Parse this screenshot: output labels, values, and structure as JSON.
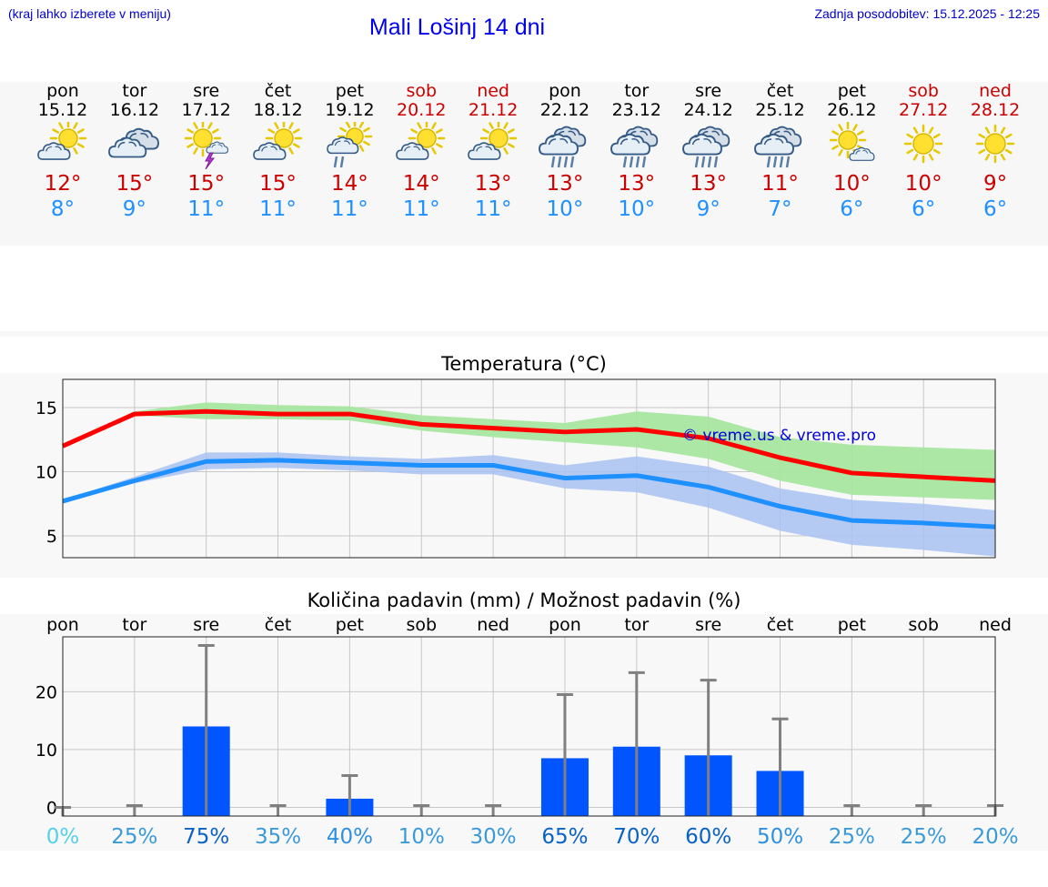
{
  "header": {
    "hint": "(kraj lahko izberete v meniju)",
    "title": "Mali Lošinj 14 dni",
    "updated": "Zadnja posodobitev: 15.12.2025 - 12:25"
  },
  "days": [
    {
      "name": "pon",
      "date": "15.12",
      "max": "12°",
      "min": "8°",
      "icon": "partly-cloudy-sun-icon",
      "weekend": false
    },
    {
      "name": "tor",
      "date": "16.12",
      "max": "15°",
      "min": "9°",
      "icon": "cloudy-icon",
      "weekend": false
    },
    {
      "name": "sre",
      "date": "17.12",
      "max": "15°",
      "min": "11°",
      "icon": "sun-thunderstorm-icon",
      "weekend": false
    },
    {
      "name": "čet",
      "date": "18.12",
      "max": "15°",
      "min": "11°",
      "icon": "partly-cloudy-sun-icon",
      "weekend": false
    },
    {
      "name": "pet",
      "date": "19.12",
      "max": "14°",
      "min": "11°",
      "icon": "sun-cloud-rain-icon",
      "weekend": false
    },
    {
      "name": "sob",
      "date": "20.12",
      "max": "14°",
      "min": "11°",
      "icon": "partly-cloudy-sun-icon",
      "weekend": true
    },
    {
      "name": "ned",
      "date": "21.12",
      "max": "13°",
      "min": "11°",
      "icon": "partly-cloudy-sun-icon",
      "weekend": true
    },
    {
      "name": "pon",
      "date": "22.12",
      "max": "13°",
      "min": "10°",
      "icon": "rain-cloud-icon",
      "weekend": false
    },
    {
      "name": "tor",
      "date": "23.12",
      "max": "13°",
      "min": "10°",
      "icon": "rain-cloud-icon",
      "weekend": false
    },
    {
      "name": "sre",
      "date": "24.12",
      "max": "13°",
      "min": "9°",
      "icon": "rain-cloud-icon",
      "weekend": false
    },
    {
      "name": "čet",
      "date": "25.12",
      "max": "11°",
      "min": "7°",
      "icon": "rain-cloud-icon",
      "weekend": false
    },
    {
      "name": "pet",
      "date": "26.12",
      "max": "10°",
      "min": "6°",
      "icon": "sun-small-cloud-icon",
      "weekend": false
    },
    {
      "name": "sob",
      "date": "27.12",
      "max": "10°",
      "min": "6°",
      "icon": "sun-icon",
      "weekend": true
    },
    {
      "name": "ned",
      "date": "28.12",
      "max": "9°",
      "min": "6°",
      "icon": "sun-icon",
      "weekend": true
    }
  ],
  "colors": {
    "max": "#ff0000",
    "min": "#1e90ff",
    "max_band": "#a8e6a0",
    "min_band": "#a9c2f2",
    "bar": "#0055ff",
    "error": "#808080",
    "weekend": "#cc0000"
  },
  "chart_data": [
    {
      "type": "line",
      "title": "Temperatura (°C)",
      "watermark": "© vreme.us & vreme.pro",
      "categories": [
        "pon",
        "tor",
        "sre",
        "čet",
        "pet",
        "sob",
        "ned",
        "pon",
        "tor",
        "sre",
        "čet",
        "pet",
        "sob",
        "ned"
      ],
      "x": [
        0,
        1,
        2,
        3,
        4,
        5,
        6,
        7,
        8,
        9,
        10,
        11,
        12,
        13
      ],
      "ylim": [
        3.3,
        17.2
      ],
      "yticks": [
        5,
        10,
        15
      ],
      "series": [
        {
          "name": "max",
          "values": [
            12.0,
            14.5,
            14.7,
            14.5,
            14.5,
            13.7,
            13.4,
            13.1,
            13.3,
            12.6,
            11.1,
            9.9,
            9.6,
            9.3
          ],
          "band_low": [
            12.0,
            14.4,
            14.1,
            14.1,
            14.0,
            13.2,
            12.7,
            12.3,
            11.9,
            11.0,
            9.3,
            8.2,
            8.0,
            7.8
          ],
          "band_high": [
            12.0,
            14.7,
            15.4,
            15.2,
            15.1,
            14.4,
            14.1,
            13.8,
            14.7,
            14.3,
            12.7,
            12.1,
            11.9,
            11.7
          ]
        },
        {
          "name": "min",
          "values": [
            7.7,
            9.3,
            10.8,
            10.9,
            10.7,
            10.5,
            10.5,
            9.5,
            9.7,
            8.8,
            7.3,
            6.2,
            6.0,
            5.7
          ],
          "band_low": [
            7.6,
            9.1,
            10.2,
            10.3,
            10.1,
            9.8,
            9.8,
            8.7,
            8.4,
            7.2,
            5.4,
            4.3,
            3.9,
            3.4
          ],
          "band_high": [
            7.8,
            9.6,
            11.5,
            11.5,
            11.2,
            11.0,
            11.3,
            10.5,
            11.2,
            10.4,
            8.7,
            7.8,
            7.5,
            7.0
          ]
        }
      ]
    },
    {
      "type": "bar",
      "title": "Količina padavin (mm) / Možnost padavin (%)",
      "categories": [
        "pon",
        "tor",
        "sre",
        "čet",
        "pet",
        "sob",
        "ned",
        "pon",
        "tor",
        "sre",
        "čet",
        "pet",
        "sob",
        "ned"
      ],
      "ylim": [
        -1.5,
        29.5
      ],
      "yticks": [
        0,
        10,
        20
      ],
      "values": [
        0,
        0,
        14,
        0,
        1.5,
        0,
        0,
        8.5,
        10.5,
        9,
        6.3,
        0,
        0,
        0
      ],
      "error_high": [
        0,
        0.3,
        28,
        0.3,
        5.5,
        0.3,
        0.3,
        19.5,
        23.3,
        22,
        15.3,
        0.3,
        0.3,
        0.3
      ],
      "probabilities": [
        "0%",
        "25%",
        "75%",
        "35%",
        "40%",
        "10%",
        "30%",
        "65%",
        "70%",
        "60%",
        "50%",
        "25%",
        "25%",
        "20%"
      ],
      "probability_values": [
        0,
        25,
        75,
        35,
        40,
        10,
        30,
        65,
        70,
        60,
        50,
        25,
        25,
        20
      ]
    }
  ]
}
